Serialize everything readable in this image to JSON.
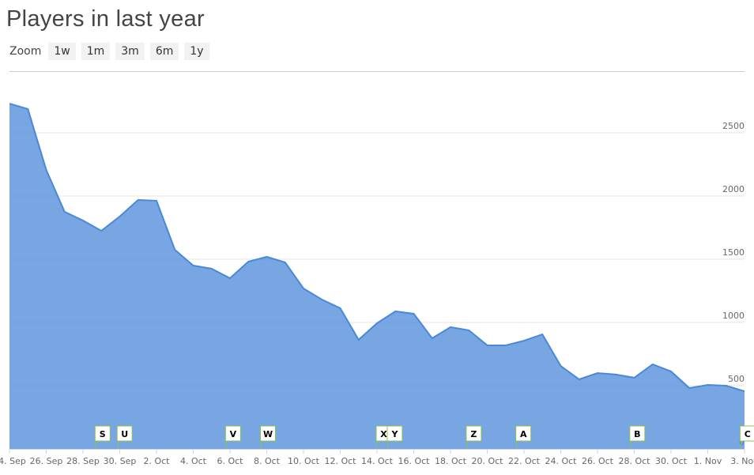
{
  "chart_data": {
    "type": "area",
    "title": "Players in last year",
    "zoom_label": "Zoom",
    "range_buttons": [
      "1w",
      "1m",
      "3m",
      "6m",
      "1y"
    ],
    "categories": [
      "24. Sep",
      null,
      "26. Sep",
      null,
      "28. Sep",
      null,
      "30. Sep",
      null,
      "2. Oct",
      null,
      "4. Oct",
      null,
      "6. Oct",
      null,
      "8. Oct",
      null,
      "10. Oct",
      null,
      "12. Oct",
      null,
      "14. Oct",
      null,
      "16. Oct",
      null,
      "18. Oct",
      null,
      "20. Oct",
      null,
      "22. Oct",
      null,
      "24. Oct",
      null,
      "26. Oct",
      null,
      "28. Oct",
      null,
      "30. Oct",
      null,
      "1. Nov",
      null,
      "3. Nov"
    ],
    "series": [
      {
        "name": "Players",
        "color": "#4a88d8",
        "values": [
          2731,
          2688,
          2206,
          1875,
          1806,
          1725,
          1838,
          1969,
          1963,
          1575,
          1450,
          1425,
          1350,
          1481,
          1519,
          1475,
          1269,
          1181,
          1113,
          863,
          994,
          1088,
          1069,
          875,
          963,
          938,
          819,
          819,
          856,
          906,
          656,
          550,
          600,
          588,
          563,
          669,
          613,
          481,
          506,
          500,
          456
        ]
      }
    ],
    "ylim": [
      0,
      3000
    ],
    "yticks": [
      0,
      500,
      1000,
      1500,
      2000,
      2500
    ],
    "grid": true,
    "flags": [
      {
        "label": "S",
        "x": 4.7
      },
      {
        "label": "U",
        "x": 5.9
      },
      {
        "label": "V",
        "x": 11.8
      },
      {
        "label": "W",
        "x": 13.7
      },
      {
        "label": "X",
        "x": 20
      },
      {
        "label": "Y",
        "x": 20.6
      },
      {
        "label": "Z",
        "x": 24.9
      },
      {
        "label": "A",
        "x": 27.6
      },
      {
        "label": "B",
        "x": 33.8
      },
      {
        "label": "C",
        "x": 39.8
      }
    ]
  }
}
